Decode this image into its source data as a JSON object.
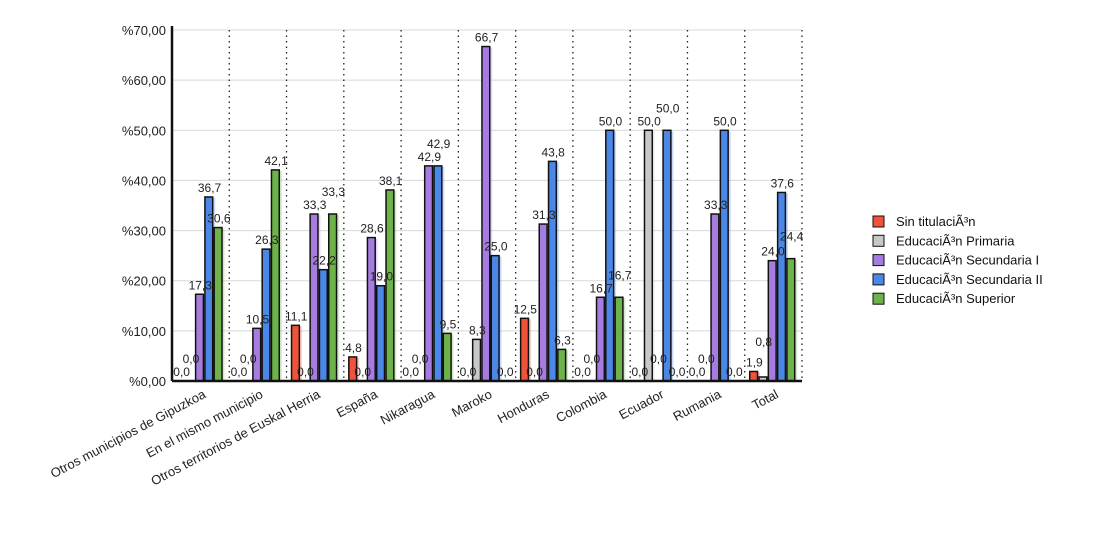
{
  "chart_data": {
    "type": "bar",
    "title": "",
    "xlabel": "",
    "ylabel": "",
    "ylim": [
      0,
      70
    ],
    "yticks": [
      "%0,00",
      "%10,00",
      "%20,00",
      "%30,00",
      "%40,00",
      "%50,00",
      "%60,00",
      "%70,00"
    ],
    "grid": true,
    "legend_position": "right",
    "categories": [
      "Otros municipios de Gipuzkoa",
      "En el mismo municipio",
      "Otros territorios de Euskal Herria",
      "España",
      "Nikaragua",
      "Maroko",
      "Honduras",
      "Colombia",
      "Ecuador",
      "Rumania",
      "Total"
    ],
    "series": [
      {
        "name": "Sin titulaciÃ³n",
        "color": "#f0533a",
        "values": [
          0,
          0,
          11.1,
          4.8,
          0,
          0,
          12.5,
          0,
          0,
          0,
          1.9
        ]
      },
      {
        "name": "EducaciÃ³n Primaria",
        "color": "#c8c8c8",
        "values": [
          0,
          0,
          0,
          0,
          0,
          8.3,
          0,
          0,
          50.0,
          0,
          0.8
        ]
      },
      {
        "name": "EducaciÃ³n Secundaria I",
        "color": "#a77ce0",
        "values": [
          17.3,
          10.5,
          33.3,
          28.6,
          42.9,
          66.7,
          31.3,
          16.7,
          0,
          33.3,
          24.0
        ]
      },
      {
        "name": "EducaciÃ³n Secundaria II",
        "color": "#4a87e6",
        "values": [
          36.7,
          26.3,
          22.2,
          19.0,
          42.9,
          25.0,
          43.8,
          50.0,
          50.0,
          50.0,
          37.6
        ]
      },
      {
        "name": "EducaciÃ³n Superior",
        "color": "#6db34a",
        "values": [
          30.6,
          42.1,
          33.3,
          38.1,
          9.5,
          0,
          6.3,
          16.7,
          0,
          0,
          24.4
        ]
      }
    ]
  }
}
